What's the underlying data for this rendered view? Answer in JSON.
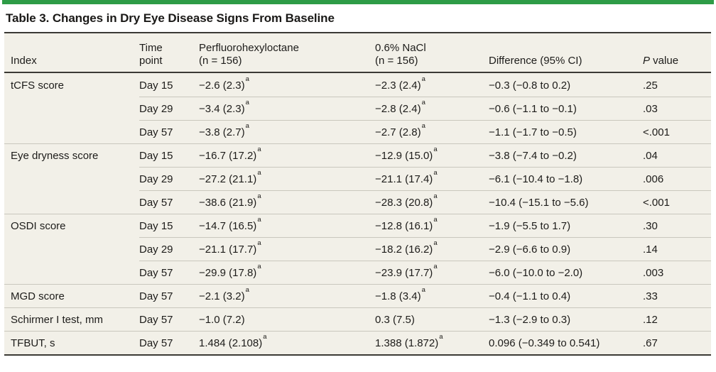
{
  "title": "Table 3. Changes in Dry Eye Disease Signs From Baseline",
  "colors": {
    "accent_green": "#2E9C47",
    "table_background": "#F2F0E8",
    "rule_dark": "#3B3A35",
    "row_line_light": "#C9C7BD",
    "text": "#1D1C1A"
  },
  "table": {
    "columns": [
      {
        "id": "index",
        "lines": [
          "Index"
        ]
      },
      {
        "id": "time-point",
        "lines": [
          "Time",
          "point"
        ]
      },
      {
        "id": "perfluorohexyloctane",
        "lines": [
          "Perfluorohexyloctane",
          "(n = 156)"
        ]
      },
      {
        "id": "nacl",
        "lines": [
          "0.6% NaCl",
          "(n = 156)"
        ]
      },
      {
        "id": "difference",
        "lines": [
          "Difference (95% CI)"
        ]
      },
      {
        "id": "p-value",
        "lines": [
          "P value"
        ],
        "italic_first": true
      }
    ],
    "rows": [
      {
        "index": "tCFS score",
        "time": "Day 15",
        "pfhx": {
          "text": "−2.6 (2.3)",
          "sup": "a"
        },
        "nacl": {
          "text": "−2.3 (2.4)",
          "sup": "a"
        },
        "diff": "−0.3 (−0.8 to 0.2)",
        "p": ".25",
        "group_start": true
      },
      {
        "index": "",
        "time": "Day 29",
        "pfhx": {
          "text": "−3.4 (2.3)",
          "sup": "a"
        },
        "nacl": {
          "text": "−2.8 (2.4)",
          "sup": "a"
        },
        "diff": "−0.6 (−1.1 to −0.1)",
        "p": ".03",
        "group_start": false
      },
      {
        "index": "",
        "time": "Day 57",
        "pfhx": {
          "text": "−3.8 (2.7)",
          "sup": "a"
        },
        "nacl": {
          "text": "−2.7 (2.8)",
          "sup": "a"
        },
        "diff": "−1.1 (−1.7 to −0.5)",
        "p": "<.001",
        "group_start": false
      },
      {
        "index": "Eye dryness score",
        "time": "Day 15",
        "pfhx": {
          "text": "−16.7 (17.2)",
          "sup": "a"
        },
        "nacl": {
          "text": "−12.9 (15.0)",
          "sup": "a"
        },
        "diff": "−3.8 (−7.4 to −0.2)",
        "p": ".04",
        "group_start": true
      },
      {
        "index": "",
        "time": "Day 29",
        "pfhx": {
          "text": "−27.2 (21.1)",
          "sup": "a"
        },
        "nacl": {
          "text": "−21.1 (17.4)",
          "sup": "a"
        },
        "diff": "−6.1 (−10.4 to −1.8)",
        "p": ".006",
        "group_start": false
      },
      {
        "index": "",
        "time": "Day 57",
        "pfhx": {
          "text": "−38.6 (21.9)",
          "sup": "a"
        },
        "nacl": {
          "text": "−28.3 (20.8)",
          "sup": "a"
        },
        "diff": "−10.4 (−15.1 to −5.6)",
        "p": "<.001",
        "group_start": false
      },
      {
        "index": "OSDI score",
        "time": "Day 15",
        "pfhx": {
          "text": "−14.7 (16.5)",
          "sup": "a"
        },
        "nacl": {
          "text": "−12.8 (16.1)",
          "sup": "a"
        },
        "diff": "−1.9 (−5.5 to 1.7)",
        "p": ".30",
        "group_start": true
      },
      {
        "index": "",
        "time": "Day 29",
        "pfhx": {
          "text": "−21.1 (17.7)",
          "sup": "a"
        },
        "nacl": {
          "text": "−18.2 (16.2)",
          "sup": "a"
        },
        "diff": "−2.9 (−6.6 to 0.9)",
        "p": ".14",
        "group_start": false
      },
      {
        "index": "",
        "time": "Day 57",
        "pfhx": {
          "text": "−29.9 (17.8)",
          "sup": "a"
        },
        "nacl": {
          "text": "−23.9 (17.7)",
          "sup": "a"
        },
        "diff": "−6.0 (−10.0 to −2.0)",
        "p": ".003",
        "group_start": false
      },
      {
        "index": "MGD score",
        "time": "Day 57",
        "pfhx": {
          "text": "−2.1 (3.2)",
          "sup": "a"
        },
        "nacl": {
          "text": "−1.8 (3.4)",
          "sup": "a"
        },
        "diff": "−0.4 (−1.1 to 0.4)",
        "p": ".33",
        "group_start": true
      },
      {
        "index": "Schirmer I test, mm",
        "time": "Day 57",
        "pfhx": "−1.0 (7.2)",
        "nacl": "0.3 (7.5)",
        "diff": "−1.3 (−2.9 to 0.3)",
        "p": ".12",
        "group_start": true
      },
      {
        "index": "TFBUT, s",
        "time": "Day 57",
        "pfhx": {
          "text": "1.484 (2.108)",
          "sup": "a"
        },
        "nacl": {
          "text": "1.388 (1.872)",
          "sup": "a"
        },
        "diff": "0.096 (−0.349 to 0.541)",
        "p": ".67",
        "group_start": true
      }
    ]
  }
}
